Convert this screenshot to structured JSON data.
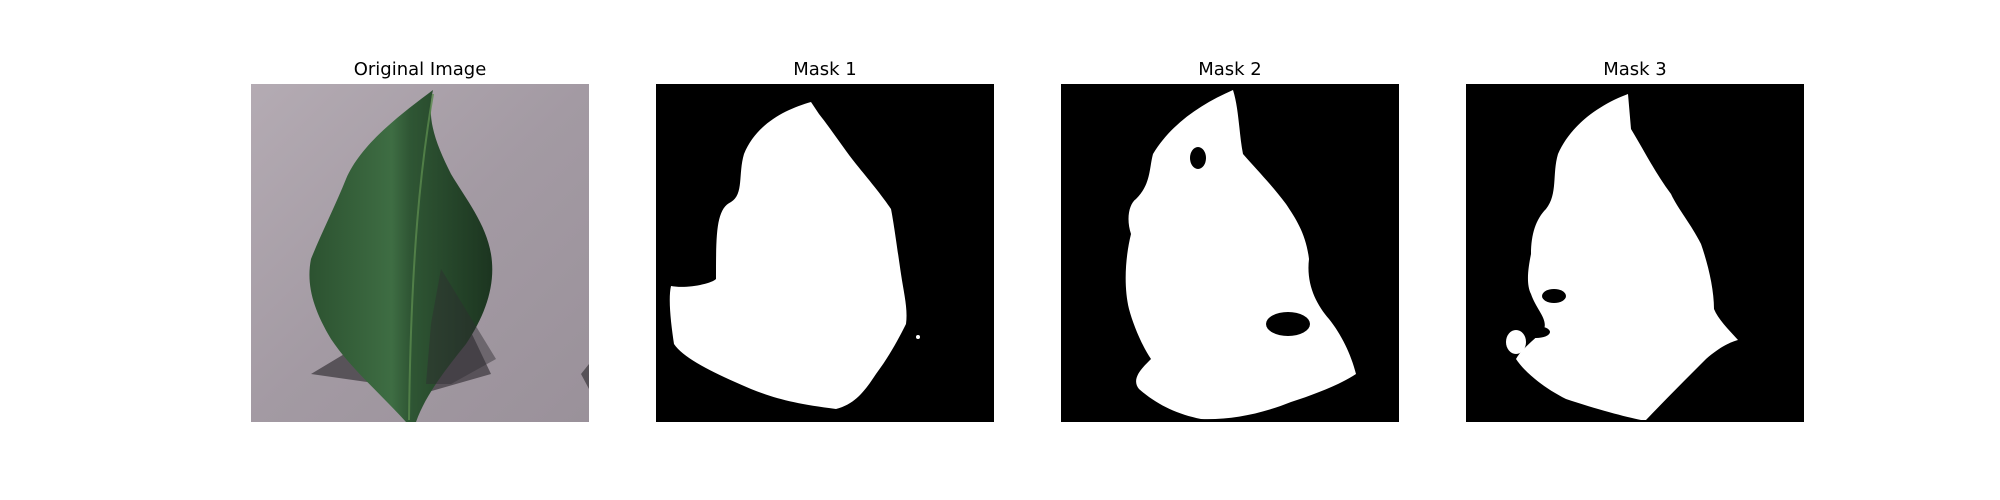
{
  "panels": [
    {
      "title": "Original Image"
    },
    {
      "title": "Mask 1"
    },
    {
      "title": "Mask 2"
    },
    {
      "title": "Mask 3"
    }
  ],
  "colors": {
    "background_gray": "#a79fa6",
    "leaf_dark": "#1f3a22",
    "leaf_mid": "#3d6a41",
    "shadow": "#4a464b",
    "mask_background": "#000000",
    "mask_foreground": "#ffffff"
  }
}
